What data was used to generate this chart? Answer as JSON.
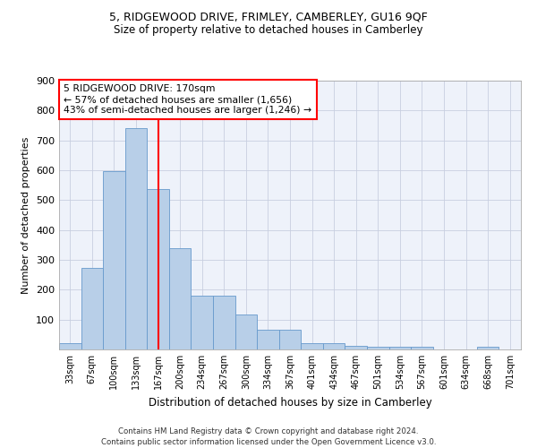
{
  "title1": "5, RIDGEWOOD DRIVE, FRIMLEY, CAMBERLEY, GU16 9QF",
  "title2": "Size of property relative to detached houses in Camberley",
  "xlabel": "Distribution of detached houses by size in Camberley",
  "ylabel": "Number of detached properties",
  "categories": [
    "33sqm",
    "67sqm",
    "100sqm",
    "133sqm",
    "167sqm",
    "200sqm",
    "234sqm",
    "267sqm",
    "300sqm",
    "334sqm",
    "367sqm",
    "401sqm",
    "434sqm",
    "467sqm",
    "501sqm",
    "534sqm",
    "567sqm",
    "601sqm",
    "634sqm",
    "668sqm",
    "701sqm"
  ],
  "values": [
    22,
    272,
    597,
    740,
    537,
    340,
    180,
    180,
    118,
    67,
    67,
    22,
    22,
    13,
    10,
    10,
    10,
    0,
    0,
    8,
    0
  ],
  "bar_color": "#b8cfe8",
  "bar_edge_color": "#6699cc",
  "annotation_text_line1": "5 RIDGEWOOD DRIVE: 170sqm",
  "annotation_text_line2": "← 57% of detached houses are smaller (1,656)",
  "annotation_text_line3": "43% of semi-detached houses are larger (1,246) →",
  "annotation_box_facecolor": "white",
  "annotation_box_edgecolor": "red",
  "vline_color": "red",
  "vline_x_index": 4.5,
  "footer1": "Contains HM Land Registry data © Crown copyright and database right 2024.",
  "footer2": "Contains public sector information licensed under the Open Government Licence v3.0.",
  "ylim": [
    0,
    900
  ],
  "yticks": [
    0,
    100,
    200,
    300,
    400,
    500,
    600,
    700,
    800,
    900
  ],
  "background_color": "#eef2fa",
  "grid_color": "#c8cfe0",
  "title1_fontsize": 9,
  "title2_fontsize": 8.5
}
